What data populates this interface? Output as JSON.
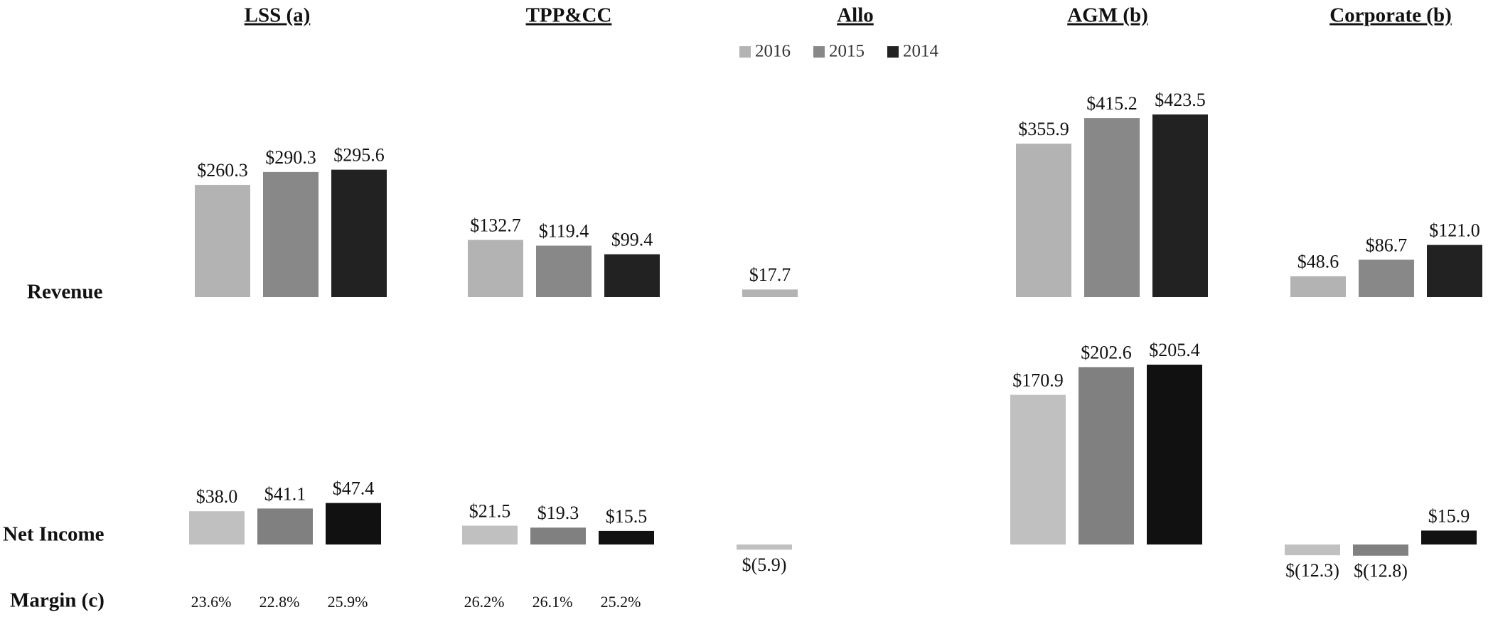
{
  "chart_data": [
    {
      "type": "bar",
      "title": "Revenue",
      "categories": [
        "LSS (a)",
        "TPP&CC",
        "Allo",
        "AGM (b)",
        "Corporate (b)"
      ],
      "ylim": [
        0,
        450
      ],
      "series": [
        {
          "name": "2016",
          "color": "#b3b3b3",
          "values": [
            260.3,
            132.7,
            17.7,
            355.9,
            48.6
          ],
          "value_labels": [
            "$260.3",
            "$132.7",
            "$17.7",
            "$355.9",
            "$48.6"
          ]
        },
        {
          "name": "2015",
          "color": "#888888",
          "values": [
            290.3,
            119.4,
            null,
            415.2,
            86.7
          ],
          "value_labels": [
            "$290.3",
            "$119.4",
            null,
            "$415.2",
            "$86.7"
          ]
        },
        {
          "name": "2014",
          "color": "#222222",
          "values": [
            295.6,
            99.4,
            null,
            423.5,
            121.0
          ],
          "value_labels": [
            "$295.6",
            "$99.4",
            null,
            "$423.5",
            "$121.0"
          ]
        }
      ]
    },
    {
      "type": "bar",
      "title": "Net Income",
      "margin_title": "Margin (c)",
      "ylim": [
        -20,
        220
      ],
      "series": [
        {
          "color": "#c0c0c0",
          "values": [
            38.0,
            21.5,
            -5.9,
            170.9,
            -12.3
          ],
          "value_labels": [
            "$38.0",
            "$21.5",
            "$(5.9)",
            "$170.9",
            "$(12.3)"
          ],
          "margin": [
            23.6,
            26.2,
            null,
            null,
            null
          ],
          "margin_labels": [
            "23.6%",
            "26.2%",
            null,
            null,
            null
          ]
        },
        {
          "color": "#808080",
          "values": [
            41.1,
            19.3,
            null,
            202.6,
            -12.8
          ],
          "value_labels": [
            "$41.1",
            "$19.3",
            null,
            "$202.6",
            "$(12.8)"
          ],
          "margin": [
            22.8,
            26.1,
            null,
            null,
            null
          ],
          "margin_labels": [
            "22.8%",
            "26.1%",
            null,
            null,
            null
          ]
        },
        {
          "color": "#111111",
          "values": [
            47.4,
            15.5,
            null,
            205.4,
            15.9
          ],
          "value_labels": [
            "$47.4",
            "$15.5",
            null,
            "$205.4",
            "$15.9"
          ],
          "margin": [
            25.9,
            25.2,
            null,
            null,
            null
          ],
          "margin_labels": [
            "25.9%",
            "25.2%",
            null,
            null,
            null
          ]
        }
      ]
    }
  ]
}
